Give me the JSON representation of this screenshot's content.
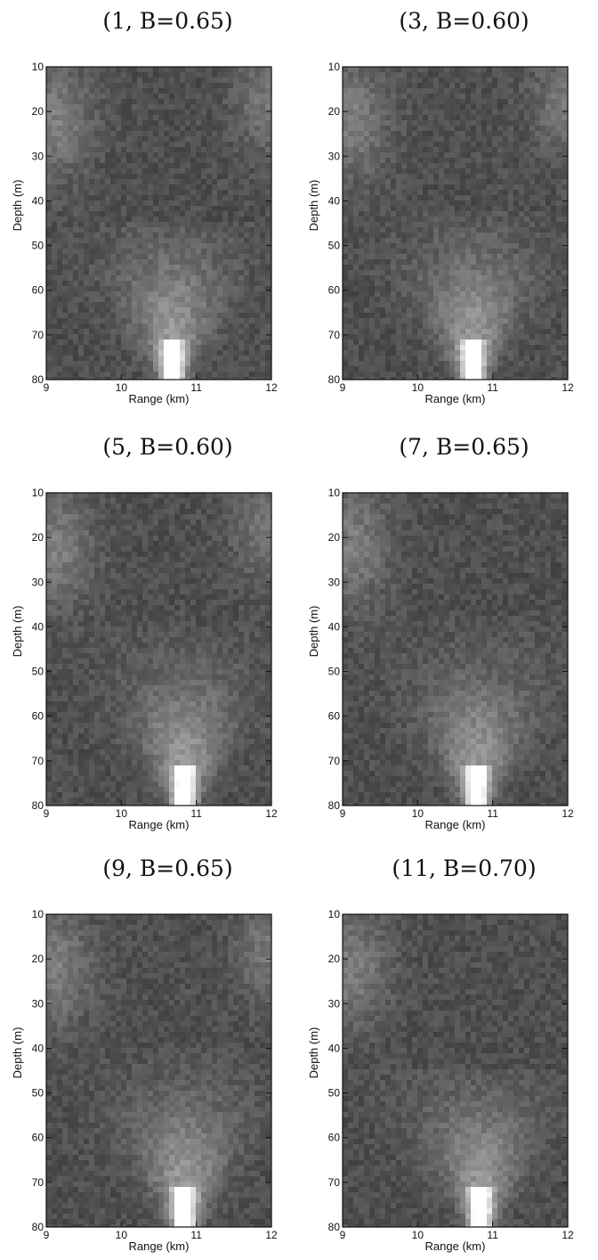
{
  "chart_data": [
    {
      "type": "heatmap",
      "title": "(1, B=0.65)",
      "xlabel": "Range (km)",
      "ylabel": "Depth (m)",
      "xlim": [
        9,
        12
      ],
      "ylim": [
        80,
        10
      ],
      "x_ticks": [
        "9",
        "10",
        "11",
        "12"
      ],
      "y_ticks": [
        "10",
        "20",
        "30",
        "40",
        "50",
        "60",
        "70",
        "80"
      ],
      "colormap": "grayscale",
      "features": {
        "bright_source_range_km": 10.65,
        "plume_top_depth_m": 62,
        "upper_left_patch": true,
        "upper_right_patch": true
      }
    },
    {
      "type": "heatmap",
      "title": "(3, B=0.60)",
      "xlabel": "Range (km)",
      "ylabel": "Depth (m)",
      "xlim": [
        9,
        12
      ],
      "ylim": [
        80,
        10
      ],
      "x_ticks": [
        "9",
        "10",
        "11",
        "12"
      ],
      "y_ticks": [
        "10",
        "20",
        "30",
        "40",
        "50",
        "60",
        "70",
        "80"
      ],
      "colormap": "grayscale",
      "features": {
        "bright_source_range_km": 10.7,
        "plume_top_depth_m": 60,
        "upper_left_patch": true,
        "upper_right_patch": true
      }
    },
    {
      "type": "heatmap",
      "title": "(5, B=0.60)",
      "xlabel": "Range (km)",
      "ylabel": "Depth (m)",
      "xlim": [
        9,
        12
      ],
      "ylim": [
        80,
        10
      ],
      "x_ticks": [
        "9",
        "10",
        "11",
        "12"
      ],
      "y_ticks": [
        "10",
        "20",
        "30",
        "40",
        "50",
        "60",
        "70",
        "80"
      ],
      "colormap": "grayscale",
      "features": {
        "bright_source_range_km": 10.8,
        "plume_top_depth_m": 58,
        "upper_left_patch": true,
        "upper_right_patch": true
      }
    },
    {
      "type": "heatmap",
      "title": "(7, B=0.65)",
      "xlabel": "Range (km)",
      "ylabel": "Depth (m)",
      "xlim": [
        9,
        12
      ],
      "ylim": [
        80,
        10
      ],
      "x_ticks": [
        "9",
        "10",
        "11",
        "12"
      ],
      "y_ticks": [
        "10",
        "20",
        "30",
        "40",
        "50",
        "60",
        "70",
        "80"
      ],
      "colormap": "grayscale",
      "features": {
        "bright_source_range_km": 10.75,
        "plume_top_depth_m": 55,
        "upper_left_patch": true,
        "upper_right_patch": false
      }
    },
    {
      "type": "heatmap",
      "title": "(9, B=0.65)",
      "xlabel": "Range (km)",
      "ylabel": "Depth (m)",
      "xlim": [
        9,
        12
      ],
      "ylim": [
        80,
        10
      ],
      "x_ticks": [
        "9",
        "10",
        "11",
        "12"
      ],
      "y_ticks": [
        "10",
        "20",
        "30",
        "40",
        "50",
        "60",
        "70",
        "80"
      ],
      "colormap": "grayscale",
      "features": {
        "bright_source_range_km": 10.8,
        "plume_top_depth_m": 58,
        "upper_left_patch": true,
        "upper_right_patch": true
      }
    },
    {
      "type": "heatmap",
      "title": "(11, B=0.70)",
      "xlabel": "Range (km)",
      "ylabel": "Depth (m)",
      "xlim": [
        9,
        12
      ],
      "ylim": [
        80,
        10
      ],
      "x_ticks": [
        "9",
        "10",
        "11",
        "12"
      ],
      "y_ticks": [
        "10",
        "20",
        "30",
        "40",
        "50",
        "60",
        "70",
        "80"
      ],
      "colormap": "grayscale",
      "features": {
        "bright_source_range_km": 10.8,
        "plume_top_depth_m": 62,
        "upper_left_patch": true,
        "upper_right_patch": false
      }
    }
  ],
  "colors": {
    "background": "#ffffff",
    "axis": "#111111",
    "dark_field": "#3c3c3c",
    "bright_source": "#ffffff"
  }
}
